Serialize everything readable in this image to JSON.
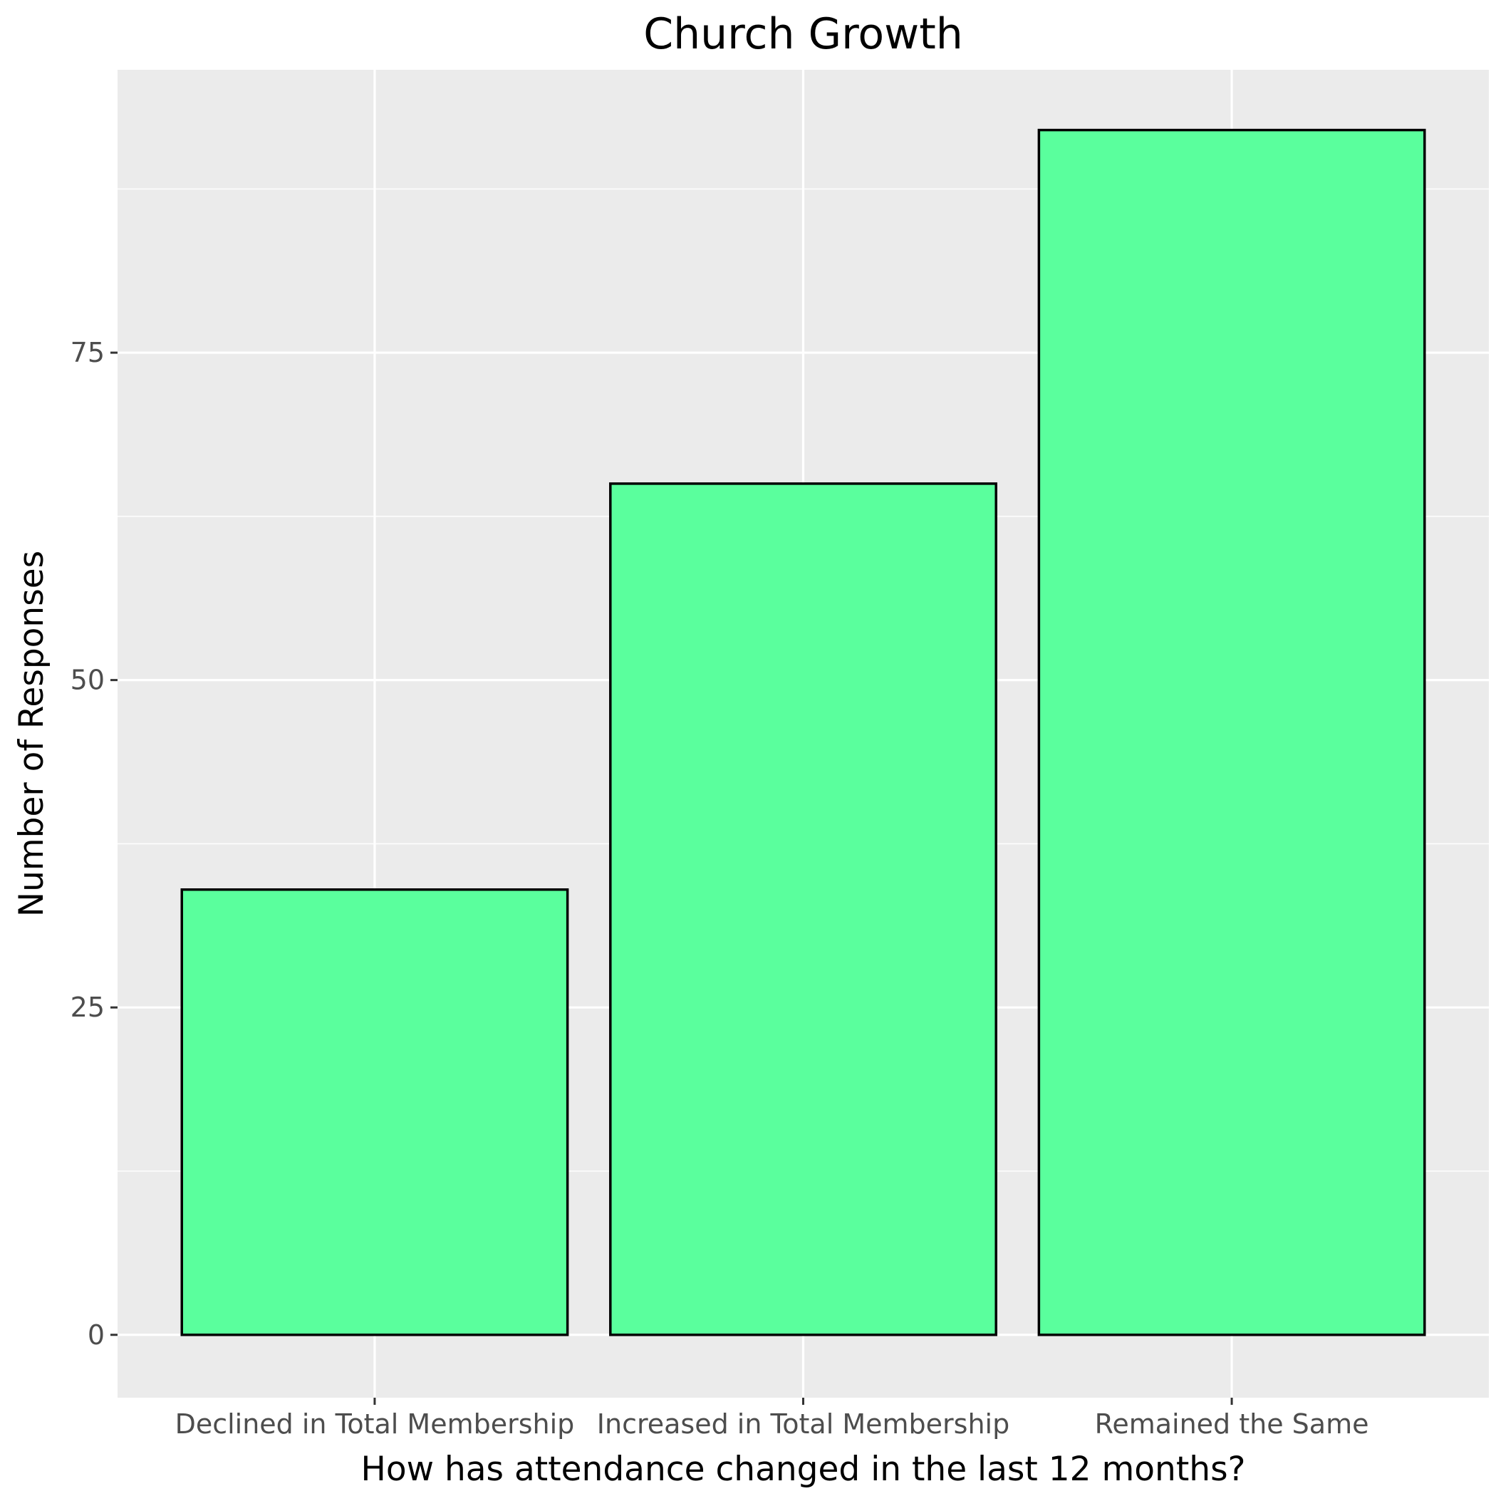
{
  "colors": {
    "panel_background": "#ebebeb",
    "grid_major": "#ffffff",
    "grid_minor": "#f7f7f7",
    "bar_fill": "#5aff9d",
    "bar_outline": "#000000",
    "tick_text": "#4d4d4d",
    "tick_mark": "#333333"
  },
  "chart_data": {
    "type": "bar",
    "title": "Church Growth",
    "xlabel": "How has attendance changed in the last 12 months?",
    "ylabel": "Number of Responses",
    "categories": [
      "Declined in Total Membership",
      "Increased in Total Membership",
      "Remained the Same"
    ],
    "values": [
      34,
      65,
      92
    ],
    "ylim": [
      -4.8,
      96.6
    ],
    "y_ticks": [
      0,
      25,
      50,
      75
    ],
    "y_minor_ticks": [
      12.5,
      37.5,
      62.5,
      87.5
    ],
    "grid": true,
    "legend": "none"
  }
}
